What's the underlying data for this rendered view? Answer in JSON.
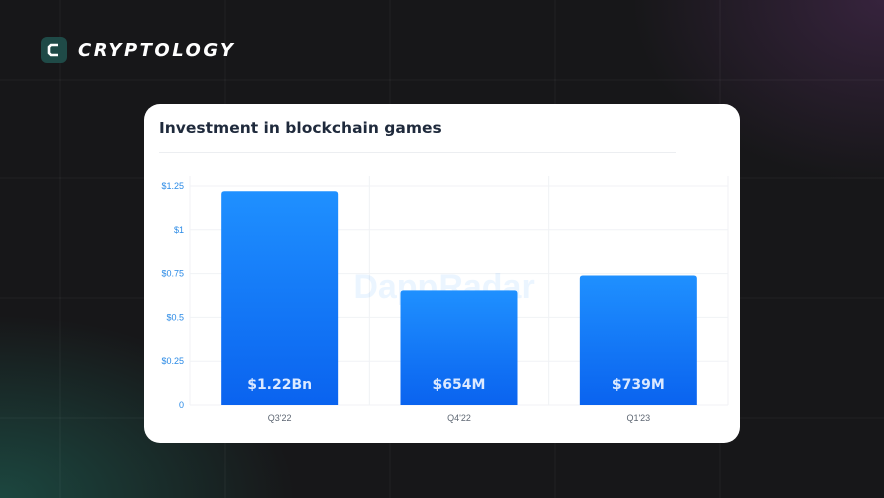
{
  "brand": {
    "name": "CRYPTOLOGY",
    "icon": "c-logo-icon",
    "accent": "#1f4a47"
  },
  "chart_data": {
    "type": "bar",
    "title": "Investment in blockchain games",
    "categories": [
      "Q3'22",
      "Q4'22",
      "Q1'23"
    ],
    "values": [
      1.22,
      0.654,
      0.739
    ],
    "data_labels": [
      "$1.22Bn",
      "$654M",
      "$739M"
    ],
    "y_ticks": [
      0,
      0.25,
      0.5,
      0.75,
      1,
      1.25
    ],
    "y_tick_labels": [
      "0",
      "$0.25",
      "$0.5",
      "$0.75",
      "$1",
      "$1.25"
    ],
    "ylim": [
      0,
      1.25
    ],
    "xlabel": "",
    "ylabel": "",
    "grid": true,
    "watermark": "DappRadar",
    "colors": {
      "bar_top": "#1f90ff",
      "bar_bottom": "#0a63ef",
      "tick": "#2a8ae6"
    }
  }
}
